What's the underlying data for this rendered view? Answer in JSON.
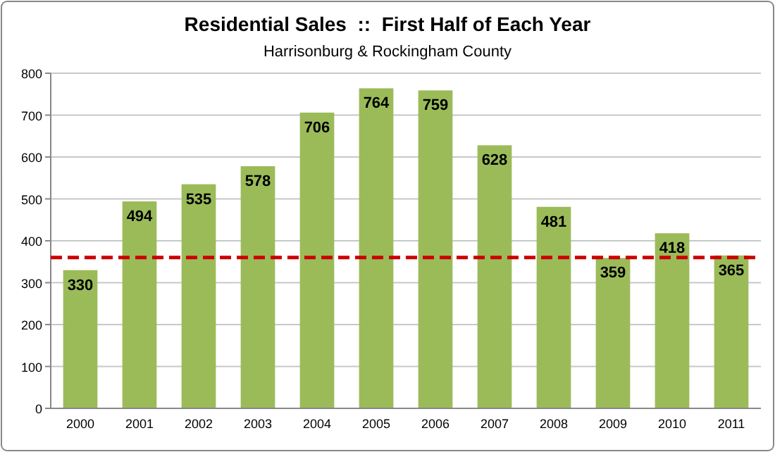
{
  "chart_data": {
    "type": "bar",
    "title": "Residential Sales  ::  First Half of Each Year",
    "subtitle": "Harrisonburg & Rockingham County",
    "categories": [
      "2000",
      "2001",
      "2002",
      "2003",
      "2004",
      "2005",
      "2006",
      "2007",
      "2008",
      "2009",
      "2010",
      "2011"
    ],
    "values": [
      330,
      494,
      535,
      578,
      706,
      764,
      759,
      628,
      481,
      359,
      418,
      365
    ],
    "color": "#9bbb59",
    "ylim": [
      0,
      800
    ],
    "yticks": [
      0,
      100,
      200,
      300,
      400,
      500,
      600,
      700,
      800
    ],
    "grid": "y",
    "data_labels": true,
    "ref_lines": [
      {
        "axis": "y",
        "value": 360,
        "color": "#cc0000",
        "line_style": "dashed"
      }
    ]
  }
}
